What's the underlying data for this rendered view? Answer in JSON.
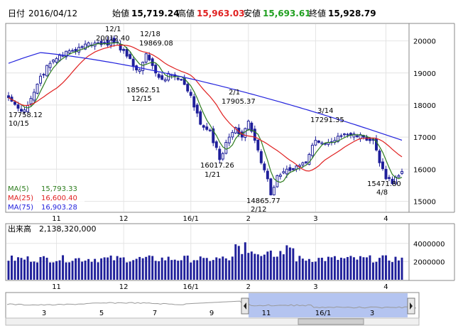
{
  "header": {
    "date_label": "日付",
    "date": "2016/04/12",
    "open_label": "始値",
    "open": "15,719.24",
    "high_label": "高値",
    "high": "15,963.03",
    "low_label": "安値",
    "low": "15,693.61",
    "close_label": "終値",
    "close": "15,928.79"
  },
  "colors": {
    "up": "#ffffff",
    "down": "#1f1f9a",
    "ma5": "#2e7d1e",
    "ma25": "#e02020",
    "ma75": "#2222dd",
    "volume": "#1f1f9a",
    "high_value": "#e02020",
    "low_value": "#20a020",
    "nav_fill": "#b4c4f0"
  },
  "chart_data": [
    {
      "type": "candlestick",
      "ylim": [
        14700,
        20500
      ],
      "y_ticks": [
        15000,
        16000,
        17000,
        18000,
        19000,
        20000
      ],
      "x_tick_labels": [
        {
          "label": "11",
          "index": 15
        },
        {
          "label": "12",
          "index": 36
        },
        {
          "label": "16/1",
          "index": 57
        },
        {
          "label": "2",
          "index": 75
        },
        {
          "label": "3",
          "index": 96
        },
        {
          "label": "4",
          "index": 118
        }
      ],
      "annotations": [
        {
          "price": "17758.12",
          "date": "10/15"
        },
        {
          "price": "20012.40",
          "date": "12/1"
        },
        {
          "price": "19869.08",
          "date": "12/18"
        },
        {
          "price": "18562.51",
          "date": "12/15"
        },
        {
          "price": "17905.37",
          "date": "2/1"
        },
        {
          "price": "16017.26",
          "date": "1/21"
        },
        {
          "price": "14865.77",
          "date": "2/12"
        },
        {
          "price": "17291.35",
          "date": "3/14"
        },
        {
          "price": "15471.80",
          "date": "4/8"
        }
      ],
      "legend": [
        {
          "name": "MA(5)",
          "value": "15,793.33"
        },
        {
          "name": "MA(25)",
          "value": "16,600.40"
        },
        {
          "name": "MA(75)",
          "value": "16,903.28"
        }
      ],
      "keyframes": [
        [
          0,
          18230
        ],
        [
          3,
          17900
        ],
        [
          5,
          17850
        ],
        [
          8,
          18400
        ],
        [
          10,
          18900
        ],
        [
          13,
          19300
        ],
        [
          16,
          19550
        ],
        [
          20,
          19700
        ],
        [
          24,
          19900
        ],
        [
          30,
          19950
        ],
        [
          33,
          19950
        ],
        [
          36,
          19700
        ],
        [
          39,
          19200
        ],
        [
          41,
          19100
        ],
        [
          43,
          19600
        ],
        [
          46,
          19000
        ],
        [
          48,
          18800
        ],
        [
          51,
          18950
        ],
        [
          54,
          18800
        ],
        [
          57,
          18300
        ],
        [
          60,
          17400
        ],
        [
          63,
          17200
        ],
        [
          66,
          16300
        ],
        [
          69,
          17000
        ],
        [
          71,
          17300
        ],
        [
          73,
          17000
        ],
        [
          75,
          17500
        ],
        [
          77,
          16900
        ],
        [
          79,
          16200
        ],
        [
          81,
          15700
        ],
        [
          82,
          15200
        ],
        [
          84,
          15800
        ],
        [
          87,
          16000
        ],
        [
          90,
          16100
        ],
        [
          93,
          16200
        ],
        [
          96,
          16900
        ],
        [
          99,
          16800
        ],
        [
          102,
          16900
        ],
        [
          105,
          17100
        ],
        [
          108,
          17100
        ],
        [
          111,
          17000
        ],
        [
          114,
          16900
        ],
        [
          116,
          16200
        ],
        [
          118,
          15700
        ],
        [
          120,
          15550
        ],
        [
          122,
          15800
        ],
        [
          123,
          15929
        ]
      ],
      "volume": {
        "label": "出来高",
        "value": "2,138,320,000",
        "ylim": [
          0,
          5000000
        ],
        "y_ticks": [
          2000000,
          4000000
        ]
      },
      "navigator": {
        "x_tick_labels": [
          "3",
          "5",
          "7",
          "9",
          "11",
          "16/1",
          "3"
        ]
      }
    }
  ]
}
